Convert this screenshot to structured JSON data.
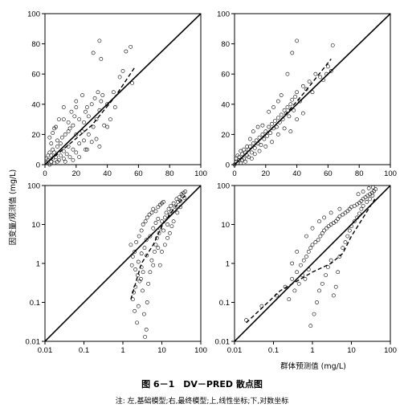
{
  "figure": {
    "caption_title": "图 6－1　DV－PRED 散点图",
    "caption_note": "注: 左,基础模型;右,最终模型;上,线性坐标;下,对数坐标",
    "ylabel": "因变量/观测值 (mg/L)",
    "xlabel": "群体预测值 (mg/L)"
  },
  "chart_data": [
    {
      "type": "scatter",
      "panel": "top-left",
      "scale": "linear",
      "xlim": [
        0,
        100
      ],
      "ylim": [
        0,
        100
      ],
      "xticks": [
        "0",
        "20",
        "40",
        "60",
        "80",
        "100"
      ],
      "yticks": [
        "0",
        "20",
        "40",
        "60",
        "80",
        "100"
      ],
      "identity_line": true,
      "trend_line": [
        [
          0,
          0
        ],
        [
          30,
          26
        ],
        [
          45,
          45
        ],
        [
          58,
          65
        ]
      ],
      "points": [
        [
          1,
          1
        ],
        [
          2,
          3
        ],
        [
          3,
          0
        ],
        [
          2,
          6
        ],
        [
          4,
          2
        ],
        [
          5,
          4
        ],
        [
          6,
          1
        ],
        [
          3,
          8
        ],
        [
          7,
          5
        ],
        [
          8,
          2
        ],
        [
          1,
          4
        ],
        [
          4,
          6
        ],
        [
          6,
          8
        ],
        [
          9,
          3
        ],
        [
          10,
          6
        ],
        [
          12,
          4
        ],
        [
          5,
          10
        ],
        [
          8,
          12
        ],
        [
          10,
          14
        ],
        [
          12,
          9
        ],
        [
          14,
          7
        ],
        [
          15,
          12
        ],
        [
          16,
          5
        ],
        [
          18,
          10
        ],
        [
          20,
          8
        ],
        [
          22,
          14
        ],
        [
          11,
          18
        ],
        [
          13,
          20
        ],
        [
          15,
          22
        ],
        [
          5,
          21
        ],
        [
          6,
          24
        ],
        [
          7,
          25
        ],
        [
          16,
          24
        ],
        [
          18,
          26
        ],
        [
          20,
          20
        ],
        [
          22,
          30
        ],
        [
          24,
          22
        ],
        [
          25,
          28
        ],
        [
          26,
          35
        ],
        [
          27,
          38
        ],
        [
          28,
          32
        ],
        [
          20,
          38
        ],
        [
          30,
          40
        ],
        [
          31,
          25
        ],
        [
          32,
          44
        ],
        [
          33,
          30
        ],
        [
          34,
          48
        ],
        [
          35,
          36
        ],
        [
          36,
          42
        ],
        [
          37,
          46
        ],
        [
          38,
          26
        ],
        [
          40,
          40
        ],
        [
          42,
          30
        ],
        [
          44,
          48
        ],
        [
          45,
          38
        ],
        [
          15,
          28
        ],
        [
          17,
          35
        ],
        [
          19,
          32
        ],
        [
          12,
          38
        ],
        [
          9,
          30
        ],
        [
          48,
          58
        ],
        [
          50,
          62
        ],
        [
          55,
          78
        ],
        [
          52,
          75
        ],
        [
          35,
          82
        ],
        [
          36,
          70
        ],
        [
          31,
          74
        ],
        [
          56,
          54
        ],
        [
          25,
          16
        ],
        [
          28,
          20
        ],
        [
          33,
          17
        ],
        [
          35,
          12
        ],
        [
          40,
          25
        ],
        [
          22,
          5
        ],
        [
          27,
          10
        ],
        [
          8,
          16
        ],
        [
          4,
          14
        ],
        [
          3,
          18
        ],
        [
          12,
          30
        ],
        [
          20,
          42
        ],
        [
          24,
          46
        ],
        [
          26,
          10
        ],
        [
          30,
          15
        ],
        [
          18,
          3
        ],
        [
          13,
          2
        ]
      ]
    },
    {
      "type": "scatter",
      "panel": "top-right",
      "scale": "linear",
      "xlim": [
        0,
        100
      ],
      "ylim": [
        0,
        100
      ],
      "xticks": [
        "0",
        "20",
        "40",
        "60",
        "80",
        "100"
      ],
      "yticks": [
        "0",
        "20",
        "40",
        "60",
        "80",
        "100"
      ],
      "identity_line": true,
      "trend_line": [
        [
          0,
          0
        ],
        [
          30,
          30
        ],
        [
          45,
          48
        ],
        [
          62,
          70
        ]
      ],
      "points": [
        [
          0,
          0
        ],
        [
          1,
          2
        ],
        [
          2,
          1
        ],
        [
          1,
          4
        ],
        [
          2,
          6
        ],
        [
          3,
          3
        ],
        [
          4,
          1
        ],
        [
          3,
          5
        ],
        [
          5,
          7
        ],
        [
          6,
          4
        ],
        [
          4,
          9
        ],
        [
          7,
          8
        ],
        [
          8,
          6
        ],
        [
          9,
          10
        ],
        [
          10,
          12
        ],
        [
          11,
          8
        ],
        [
          12,
          14
        ],
        [
          13,
          11
        ],
        [
          14,
          16
        ],
        [
          15,
          14
        ],
        [
          16,
          18
        ],
        [
          17,
          13
        ],
        [
          18,
          20
        ],
        [
          19,
          17
        ],
        [
          20,
          22
        ],
        [
          21,
          19
        ],
        [
          22,
          25
        ],
        [
          23,
          21
        ],
        [
          24,
          27
        ],
        [
          25,
          24
        ],
        [
          26,
          29
        ],
        [
          27,
          25
        ],
        [
          28,
          31
        ],
        [
          29,
          28
        ],
        [
          30,
          33
        ],
        [
          31,
          30
        ],
        [
          32,
          36
        ],
        [
          33,
          34
        ],
        [
          34,
          38
        ],
        [
          35,
          32
        ],
        [
          36,
          40
        ],
        [
          37,
          43
        ],
        [
          38,
          36
        ],
        [
          39,
          45
        ],
        [
          40,
          48
        ],
        [
          42,
          42
        ],
        [
          44,
          52
        ],
        [
          46,
          50
        ],
        [
          48,
          55
        ],
        [
          50,
          48
        ],
        [
          52,
          60
        ],
        [
          55,
          58
        ],
        [
          57,
          56
        ],
        [
          59,
          60
        ],
        [
          60,
          65
        ],
        [
          62,
          62
        ],
        [
          63,
          79
        ],
        [
          40,
          82
        ],
        [
          37,
          74
        ],
        [
          34,
          60
        ],
        [
          30,
          46
        ],
        [
          28,
          42
        ],
        [
          25,
          38
        ],
        [
          22,
          35
        ],
        [
          18,
          26
        ],
        [
          15,
          25
        ],
        [
          12,
          22
        ],
        [
          10,
          17
        ],
        [
          8,
          12
        ],
        [
          6,
          10
        ],
        [
          5,
          3
        ],
        [
          7,
          2
        ],
        [
          9,
          5
        ],
        [
          11,
          4
        ],
        [
          13,
          7
        ],
        [
          16,
          9
        ],
        [
          20,
          12
        ],
        [
          24,
          15
        ],
        [
          28,
          20
        ],
        [
          32,
          24
        ],
        [
          36,
          22
        ],
        [
          40,
          30
        ],
        [
          44,
          34
        ]
      ]
    },
    {
      "type": "scatter",
      "panel": "bottom-left",
      "scale": "log",
      "xlim": [
        0.01,
        100
      ],
      "ylim": [
        0.01,
        100
      ],
      "xticks": [
        "0.01",
        "0.1",
        "1",
        "10",
        "100"
      ],
      "yticks": [
        "0.01",
        "0.1",
        "1",
        "10",
        "100"
      ],
      "identity_line": true,
      "trend_line": [
        [
          1.6,
          0.12
        ],
        [
          3,
          1
        ],
        [
          6,
          3
        ],
        [
          10,
          9
        ],
        [
          20,
          25
        ],
        [
          40,
          55
        ]
      ],
      "points": [
        [
          1.8,
          0.12
        ],
        [
          1.9,
          0.18
        ],
        [
          2.1,
          0.25
        ],
        [
          2.0,
          0.06
        ],
        [
          2.3,
          0.03
        ],
        [
          2.5,
          0.08
        ],
        [
          2.7,
          0.35
        ],
        [
          2.4,
          0.5
        ],
        [
          3,
          0.8
        ],
        [
          3.2,
          0.2
        ],
        [
          3.5,
          0.05
        ],
        [
          3.7,
          0.013
        ],
        [
          4,
          0.02
        ],
        [
          4.2,
          0.1
        ],
        [
          4.5,
          0.3
        ],
        [
          5,
          0.6
        ],
        [
          5.5,
          1.2
        ],
        [
          6,
          0.9
        ],
        [
          6.5,
          2
        ],
        [
          7,
          3
        ],
        [
          7.5,
          4.5
        ],
        [
          8,
          2.5
        ],
        [
          8.5,
          6
        ],
        [
          9,
          8
        ],
        [
          10,
          12
        ],
        [
          11,
          7
        ],
        [
          12,
          15
        ],
        [
          13,
          20
        ],
        [
          14,
          10
        ],
        [
          15,
          25
        ],
        [
          16,
          18
        ],
        [
          17,
          30
        ],
        [
          18,
          22
        ],
        [
          20,
          35
        ],
        [
          22,
          28
        ],
        [
          24,
          45
        ],
        [
          26,
          38
        ],
        [
          28,
          50
        ],
        [
          30,
          40
        ],
        [
          32,
          60
        ],
        [
          34,
          55
        ],
        [
          36,
          65
        ],
        [
          38,
          48
        ],
        [
          40,
          70
        ],
        [
          2,
          2
        ],
        [
          2.2,
          3.5
        ],
        [
          2.6,
          5
        ],
        [
          3,
          7
        ],
        [
          3.3,
          10
        ],
        [
          3.8,
          12
        ],
        [
          4.2,
          15
        ],
        [
          4.8,
          18
        ],
        [
          5.5,
          20
        ],
        [
          6,
          25
        ],
        [
          7,
          22
        ],
        [
          8,
          28
        ],
        [
          9,
          32
        ],
        [
          10,
          35
        ],
        [
          11,
          38
        ],
        [
          1.6,
          3
        ],
        [
          1.8,
          1.5
        ],
        [
          2.5,
          1.1
        ],
        [
          3,
          1.8
        ],
        [
          3.6,
          2.5
        ],
        [
          4,
          4
        ],
        [
          5,
          5
        ],
        [
          6,
          8
        ],
        [
          7,
          11
        ],
        [
          8,
          14
        ],
        [
          1.7,
          0.9
        ],
        [
          2.1,
          0.7
        ],
        [
          2.9,
          0.4
        ],
        [
          3.3,
          0.6
        ],
        [
          4.1,
          1.6
        ],
        [
          9,
          0.9
        ],
        [
          10,
          2
        ],
        [
          12,
          3
        ],
        [
          14,
          4.5
        ],
        [
          16,
          6
        ],
        [
          18,
          9
        ],
        [
          20,
          12
        ],
        [
          25,
          20
        ],
        [
          30,
          28
        ]
      ]
    },
    {
      "type": "scatter",
      "panel": "bottom-right",
      "scale": "log",
      "xlim": [
        0.01,
        100
      ],
      "ylim": [
        0.01,
        100
      ],
      "xticks": [
        "0.01",
        "0.1",
        "1",
        "10",
        "100"
      ],
      "yticks": [
        "0.01",
        "0.1",
        "1",
        "10",
        "100"
      ],
      "identity_line": true,
      "trend_line": [
        [
          0.02,
          0.03
        ],
        [
          0.15,
          0.2
        ],
        [
          0.5,
          0.4
        ],
        [
          1,
          0.6
        ],
        [
          3,
          1
        ],
        [
          6,
          1.8
        ],
        [
          10,
          5
        ],
        [
          20,
          15
        ],
        [
          40,
          45
        ]
      ],
      "points": [
        [
          0.02,
          0.035
        ],
        [
          0.05,
          0.08
        ],
        [
          0.12,
          0.15
        ],
        [
          0.2,
          0.25
        ],
        [
          0.3,
          0.4
        ],
        [
          0.4,
          0.6
        ],
        [
          0.5,
          0.9
        ],
        [
          0.6,
          1.2
        ],
        [
          0.7,
          1.5
        ],
        [
          0.8,
          2
        ],
        [
          0.9,
          2.5
        ],
        [
          1,
          3
        ],
        [
          1.2,
          3.5
        ],
        [
          1.4,
          4
        ],
        [
          1.6,
          5
        ],
        [
          1.8,
          6
        ],
        [
          2,
          7
        ],
        [
          2.3,
          8
        ],
        [
          2.6,
          9
        ],
        [
          3,
          10
        ],
        [
          3.5,
          11
        ],
        [
          4,
          12
        ],
        [
          4.5,
          14
        ],
        [
          5,
          16
        ],
        [
          6,
          18
        ],
        [
          7,
          20
        ],
        [
          8,
          22
        ],
        [
          9,
          25
        ],
        [
          10,
          28
        ],
        [
          12,
          30
        ],
        [
          14,
          33
        ],
        [
          16,
          36
        ],
        [
          18,
          40
        ],
        [
          20,
          45
        ],
        [
          23,
          50
        ],
        [
          26,
          55
        ],
        [
          30,
          60
        ],
        [
          34,
          65
        ],
        [
          38,
          72
        ],
        [
          42,
          80
        ],
        [
          0.25,
          0.12
        ],
        [
          0.35,
          0.2
        ],
        [
          0.45,
          0.3
        ],
        [
          0.55,
          0.5
        ],
        [
          0.65,
          0.4
        ],
        [
          0.8,
          0.7
        ],
        [
          0.9,
          0.025
        ],
        [
          1.1,
          0.05
        ],
        [
          1.3,
          0.1
        ],
        [
          1.5,
          0.2
        ],
        [
          1.8,
          0.3
        ],
        [
          2.2,
          0.5
        ],
        [
          2.5,
          0.8
        ],
        [
          3,
          1.2
        ],
        [
          3.5,
          0.15
        ],
        [
          4,
          0.25
        ],
        [
          4.5,
          0.6
        ],
        [
          5,
          1.5
        ],
        [
          6,
          2.5
        ],
        [
          7,
          3.5
        ],
        [
          8,
          5
        ],
        [
          9,
          7
        ],
        [
          10,
          9
        ],
        [
          12,
          12
        ],
        [
          14,
          15
        ],
        [
          16,
          19
        ],
        [
          18,
          25
        ],
        [
          20,
          30
        ],
        [
          25,
          38
        ],
        [
          30,
          45
        ],
        [
          35,
          55
        ],
        [
          1,
          8
        ],
        [
          1.5,
          12
        ],
        [
          2,
          15
        ],
        [
          3,
          20
        ],
        [
          5,
          25
        ],
        [
          0.7,
          5
        ],
        [
          0.4,
          2
        ],
        [
          0.3,
          1
        ],
        [
          15,
          60
        ],
        [
          20,
          70
        ],
        [
          28,
          85
        ],
        [
          36,
          90
        ]
      ]
    }
  ]
}
